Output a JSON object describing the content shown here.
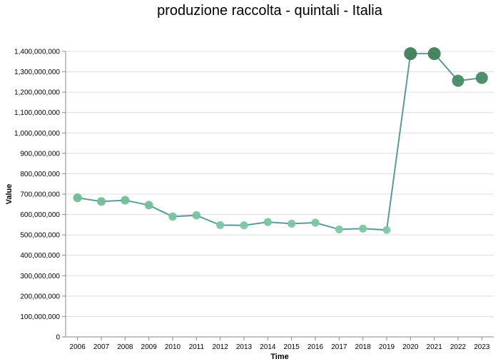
{
  "chart_data": {
    "type": "line",
    "title": "produzione raccolta - quintali - Italia",
    "xlabel": "Time",
    "ylabel": "Value",
    "ylim": [
      0,
      1400000000
    ],
    "yticks": [
      "0",
      "100,000,000",
      "200,000,000",
      "300,000,000",
      "400,000,000",
      "500,000,000",
      "600,000,000",
      "700,000,000",
      "800,000,000",
      "900,000,000",
      "1,000,000,000",
      "1,100,000,000",
      "1,200,000,000",
      "1,300,000,000",
      "1,400,000,000"
    ],
    "grid": true,
    "categories": [
      "2006",
      "2007",
      "2008",
      "2009",
      "2010",
      "2011",
      "2012",
      "2013",
      "2014",
      "2015",
      "2016",
      "2017",
      "2018",
      "2019",
      "2020",
      "2021",
      "2022",
      "2023"
    ],
    "values": [
      682000000,
      664000000,
      670000000,
      646000000,
      590000000,
      596000000,
      548000000,
      547000000,
      563000000,
      555000000,
      560000000,
      527000000,
      531000000,
      524000000,
      1389000000,
      1389000000,
      1256000000,
      1270000000
    ],
    "colors": {
      "line": "#5a9a9a",
      "point_light": "#7ec8a6",
      "point_dark": "#3e8059",
      "grid": "#dddddd",
      "axis": "#888888"
    }
  }
}
